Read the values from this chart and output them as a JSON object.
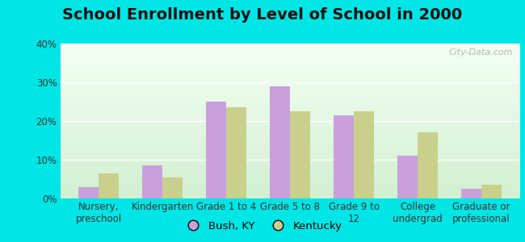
{
  "title": "School Enrollment by Level of School in 2000",
  "categories": [
    "Nursery,\npreschool",
    "Kindergarten",
    "Grade 1 to 4",
    "Grade 5 to 8",
    "Grade 9 to\n12",
    "College\nundergrad",
    "Graduate or\nprofessional"
  ],
  "bush_ky": [
    3.0,
    8.5,
    25.0,
    29.0,
    21.5,
    11.0,
    2.5
  ],
  "kentucky": [
    6.5,
    5.5,
    23.5,
    22.5,
    22.5,
    17.0,
    3.5
  ],
  "bush_color": "#c9a0dc",
  "kentucky_color": "#c8d08c",
  "background_outer": "#00e5e5",
  "gradient_top": "#e0f0e0",
  "gradient_bottom": "#f5fff5",
  "ylim": [
    0,
    40
  ],
  "yticks": [
    0,
    10,
    20,
    30,
    40
  ],
  "ytick_labels": [
    "0%",
    "10%",
    "20%",
    "30%",
    "40%"
  ],
  "legend_labels": [
    "Bush, KY",
    "Kentucky"
  ],
  "watermark": "City-Data.com",
  "title_fontsize": 14,
  "tick_fontsize": 8.5,
  "legend_fontsize": 9.5,
  "bar_width": 0.32
}
